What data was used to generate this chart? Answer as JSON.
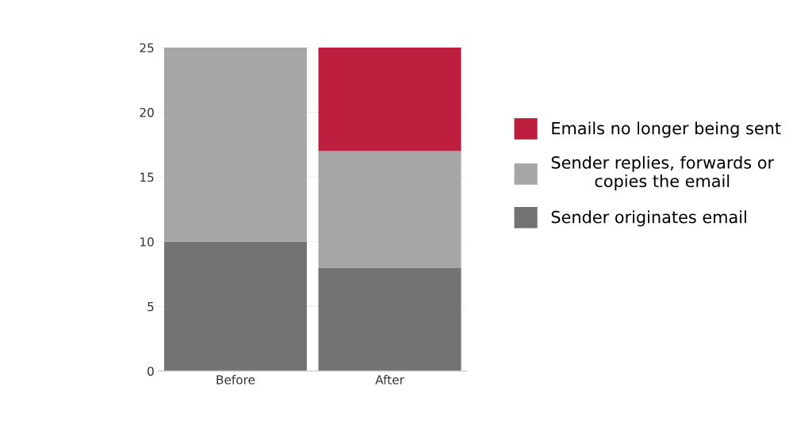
{
  "chart_data": {
    "type": "bar",
    "stacked": true,
    "categories": [
      "Before",
      "After"
    ],
    "series": [
      {
        "name": "Sender originates email",
        "color": "#737373",
        "values": [
          10,
          8
        ]
      },
      {
        "name": "Sender replies, forwards or\ncopies the email",
        "color": "#a6a6a6",
        "values": [
          15,
          9
        ]
      },
      {
        "name": "Emails no longer being sent",
        "color": "#be1e3e",
        "values": [
          null,
          8
        ]
      }
    ],
    "ylim": [
      0,
      25
    ],
    "yticks": [
      0,
      5,
      10,
      15,
      20,
      25
    ],
    "grid": "y",
    "legend": "right"
  }
}
